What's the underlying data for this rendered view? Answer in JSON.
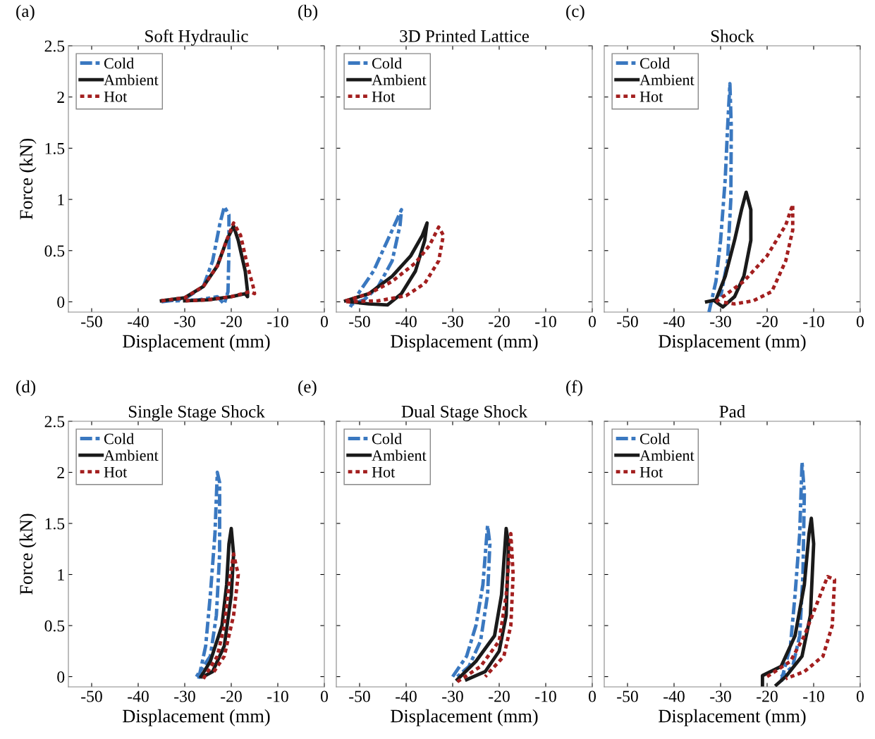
{
  "chart_data": [
    {
      "type": "line",
      "title": "Soft Hydraulic",
      "annotations": [
        "(a)"
      ],
      "xlabel": "Displacement (mm)",
      "ylabel": "Force (kN)",
      "xlim": [
        -55,
        0
      ],
      "ylim": [
        -0.1,
        2.5
      ],
      "xticks": [
        -50,
        -40,
        -30,
        -20,
        -10,
        0
      ],
      "yticks": [
        0,
        0.5,
        1,
        1.5,
        2,
        2.5
      ],
      "legend": "top left",
      "series": [
        {
          "name": "Cold",
          "color": "#3a78c0",
          "line_style": "dashed",
          "x": [
            -35,
            -30,
            -26,
            -24,
            -22.5,
            -21.5,
            -20.5,
            -20.5,
            -20.7,
            -21.5,
            -23,
            -27,
            -32
          ],
          "values": [
            0,
            0.03,
            0.15,
            0.4,
            0.75,
            0.93,
            0.85,
            0.5,
            0.1,
            -0.02,
            0.05,
            0.02,
            0.01
          ]
        },
        {
          "name": "Ambient",
          "color": "#1a1a1a",
          "line_style": "solid",
          "x": [
            -35,
            -30,
            -26,
            -23,
            -21,
            -19.5,
            -18.5,
            -17,
            -16.5,
            -16.5,
            -17,
            -20,
            -25,
            -30
          ],
          "values": [
            0.01,
            0.04,
            0.15,
            0.35,
            0.6,
            0.74,
            0.6,
            0.3,
            0.1,
            0.05,
            0.08,
            0.05,
            0.02,
            0.01
          ]
        },
        {
          "name": "Hot",
          "color": "#a31f1f",
          "line_style": "dotted",
          "x": [
            -35,
            -30,
            -26,
            -23,
            -21,
            -19.5,
            -18,
            -16.5,
            -15.3,
            -15,
            -16,
            -20,
            -25,
            -30
          ],
          "values": [
            0.01,
            0.04,
            0.15,
            0.35,
            0.6,
            0.77,
            0.65,
            0.35,
            0.15,
            0.08,
            0.1,
            0.05,
            0.02,
            0.01
          ]
        }
      ]
    },
    {
      "type": "line",
      "title": "3D Printed Lattice",
      "annotations": [
        "(b)"
      ],
      "xlabel": "Displacement (mm)",
      "xlim": [
        -55,
        0
      ],
      "ylim": [
        -0.1,
        2.5
      ],
      "xticks": [
        -50,
        -40,
        -30,
        -20,
        -10,
        0
      ],
      "yticks": [
        0,
        0.5,
        1,
        1.5,
        2,
        2.5
      ],
      "tick_labels": "x",
      "legend": "top left",
      "series": [
        {
          "name": "Cold",
          "color": "#3a78c0",
          "line_style": "dashed",
          "x": [
            -52,
            -50,
            -47,
            -44,
            -42,
            -41,
            -41.3,
            -43,
            -46,
            -49,
            -52
          ],
          "values": [
            -0.05,
            0.1,
            0.3,
            0.6,
            0.8,
            0.9,
            0.75,
            0.4,
            0.15,
            0.02,
            -0.03
          ]
        },
        {
          "name": "Ambient",
          "color": "#1a1a1a",
          "line_style": "solid",
          "x": [
            -53,
            -48,
            -43,
            -39,
            -36.5,
            -35.5,
            -36,
            -38,
            -41,
            -44,
            -48,
            -52
          ],
          "values": [
            0.01,
            0.08,
            0.25,
            0.45,
            0.65,
            0.77,
            0.6,
            0.3,
            0.08,
            -0.03,
            -0.02,
            0
          ]
        },
        {
          "name": "Hot",
          "color": "#a31f1f",
          "line_style": "dotted",
          "x": [
            -53,
            -48,
            -43,
            -38,
            -35,
            -33,
            -32,
            -33,
            -36,
            -40,
            -46,
            -53
          ],
          "values": [
            0.01,
            0.08,
            0.2,
            0.38,
            0.55,
            0.73,
            0.65,
            0.4,
            0.18,
            0.06,
            0.01,
            0
          ]
        }
      ]
    },
    {
      "type": "line",
      "title": "Shock",
      "annotations": [
        "(c)"
      ],
      "xlabel": "Displacement (mm)",
      "xlim": [
        -55,
        0
      ],
      "ylim": [
        -0.1,
        2.5
      ],
      "xticks": [
        -50,
        -40,
        -30,
        -20,
        -10,
        0
      ],
      "yticks": [
        0,
        0.5,
        1,
        1.5,
        2,
        2.5
      ],
      "tick_labels": "x",
      "legend": "top left",
      "series": [
        {
          "name": "Cold",
          "color": "#3a78c0",
          "line_style": "dashed",
          "x": [
            -32.5,
            -31,
            -30,
            -29,
            -28.5,
            -28,
            -27.7,
            -27.8,
            -28.5,
            -30
          ],
          "values": [
            -0.1,
            0.2,
            0.6,
            1.2,
            1.7,
            2.13,
            1.7,
            1.0,
            0.4,
            0.05
          ]
        },
        {
          "name": "Ambient",
          "color": "#1a1a1a",
          "line_style": "solid",
          "x": [
            -33,
            -31,
            -29,
            -27,
            -25.5,
            -24.5,
            -23.5,
            -23.5,
            -25,
            -27,
            -29.5,
            -31
          ],
          "values": [
            0,
            0.02,
            0.25,
            0.6,
            0.9,
            1.07,
            0.9,
            0.6,
            0.25,
            0.05,
            -0.05,
            0
          ]
        },
        {
          "name": "Hot",
          "color": "#a31f1f",
          "line_style": "dotted",
          "x": [
            -31,
            -28,
            -25,
            -20,
            -16,
            -14.5,
            -14.5,
            -16,
            -19,
            -23,
            -27,
            -30
          ],
          "values": [
            0,
            0.1,
            0.2,
            0.45,
            0.75,
            0.95,
            0.7,
            0.4,
            0.1,
            0.01,
            -0.02,
            0
          ]
        }
      ]
    },
    {
      "type": "line",
      "title": "Single Stage Shock",
      "annotations": [
        "(d)"
      ],
      "xlabel": "Displacement (mm)",
      "ylabel": "Force (kN)",
      "xlim": [
        -55,
        0
      ],
      "ylim": [
        -0.1,
        2.5
      ],
      "xticks": [
        -50,
        -40,
        -30,
        -20,
        -10,
        0
      ],
      "yticks": [
        0,
        0.5,
        1,
        1.5,
        2,
        2.5
      ],
      "legend": "top left",
      "series": [
        {
          "name": "Cold",
          "color": "#3a78c0",
          "line_style": "dashed",
          "x": [
            -27,
            -25.5,
            -24.5,
            -23.5,
            -23,
            -22.5,
            -22.5,
            -23.2,
            -24.5,
            -27.5
          ],
          "values": [
            -0.02,
            0.3,
            0.8,
            1.4,
            2.0,
            1.9,
            1.2,
            0.6,
            0.2,
            0
          ]
        },
        {
          "name": "Ambient",
          "color": "#1a1a1a",
          "line_style": "solid",
          "x": [
            -26.5,
            -24.5,
            -22,
            -21,
            -20.5,
            -20,
            -19.5,
            -20,
            -21.5,
            -24,
            -26
          ],
          "values": [
            0,
            0.15,
            0.5,
            0.9,
            1.3,
            1.45,
            1.2,
            0.8,
            0.3,
            0.05,
            0
          ]
        },
        {
          "name": "Hot",
          "color": "#a31f1f",
          "line_style": "dotted",
          "x": [
            -26,
            -23,
            -21.5,
            -20.5,
            -19.5,
            -18.5,
            -19.5,
            -21.5,
            -24
          ],
          "values": [
            -0.02,
            0.2,
            0.5,
            0.9,
            1.2,
            1.0,
            0.6,
            0.2,
            0.03
          ]
        }
      ]
    },
    {
      "type": "line",
      "title": "Dual Stage Shock",
      "annotations": [
        "(e)"
      ],
      "xlabel": "Displacement (mm)",
      "xlim": [
        -55,
        0
      ],
      "ylim": [
        -0.1,
        2.5
      ],
      "xticks": [
        -50,
        -40,
        -30,
        -20,
        -10,
        0
      ],
      "yticks": [
        0,
        0.5,
        1,
        1.5,
        2,
        2.5
      ],
      "tick_labels": "x",
      "legend": "top left",
      "series": [
        {
          "name": "Cold",
          "color": "#3a78c0",
          "line_style": "dashed",
          "x": [
            -30,
            -27,
            -25,
            -23.5,
            -22.5,
            -22,
            -22.5,
            -24,
            -26.5,
            -29
          ],
          "values": [
            0,
            0.2,
            0.5,
            0.9,
            1.48,
            1.3,
            0.8,
            0.35,
            0.1,
            0
          ]
        },
        {
          "name": "Ambient",
          "color": "#1a1a1a",
          "line_style": "solid",
          "x": [
            -29,
            -25,
            -21,
            -19.5,
            -18.5,
            -18,
            -18.5,
            -20,
            -23,
            -27
          ],
          "values": [
            -0.03,
            0.15,
            0.4,
            0.8,
            1.45,
            1.3,
            0.6,
            0.25,
            0.05,
            -0.03
          ]
        },
        {
          "name": "Hot",
          "color": "#a31f1f",
          "line_style": "dotted",
          "x": [
            -29,
            -24,
            -20,
            -18.5,
            -17.5,
            -17,
            -17.5,
            -19,
            -23
          ],
          "values": [
            -0.05,
            0.1,
            0.35,
            0.8,
            1.4,
            1.0,
            0.5,
            0.2,
            0
          ]
        }
      ]
    },
    {
      "type": "line",
      "title": "Pad",
      "annotations": [
        "(f)"
      ],
      "xlabel": "Displacement (mm)",
      "xlim": [
        -55,
        0
      ],
      "ylim": [
        -0.1,
        2.5
      ],
      "xticks": [
        -50,
        -40,
        -30,
        -20,
        -10,
        0
      ],
      "yticks": [
        0,
        0.5,
        1,
        1.5,
        2,
        2.5
      ],
      "tick_labels": "x",
      "legend": "top left",
      "series": [
        {
          "name": "Cold",
          "color": "#3a78c0",
          "line_style": "dashed",
          "x": [
            -17,
            -15,
            -14,
            -13,
            -12.5,
            -12,
            -12.3,
            -13,
            -14.5,
            -17
          ],
          "values": [
            -0.05,
            0.3,
            0.8,
            1.4,
            2.1,
            1.8,
            1.0,
            0.4,
            0.1,
            0
          ]
        },
        {
          "name": "Ambient",
          "color": "#1a1a1a",
          "line_style": "solid",
          "x": [
            -21,
            -21,
            -17,
            -14,
            -12,
            -11,
            -10.5,
            -10,
            -10.7,
            -12.5,
            -16,
            -18
          ],
          "values": [
            -0.08,
            0.01,
            0.1,
            0.4,
            0.9,
            1.4,
            1.55,
            1.3,
            0.6,
            0.2,
            0,
            -0.08
          ]
        },
        {
          "name": "Hot",
          "color": "#a31f1f",
          "line_style": "dotted",
          "x": [
            -20,
            -15,
            -12,
            -9,
            -7,
            -5.5,
            -6,
            -8,
            -12,
            -16
          ],
          "values": [
            0,
            0.15,
            0.4,
            0.75,
            0.98,
            0.95,
            0.5,
            0.2,
            0.05,
            -0.02
          ]
        }
      ]
    }
  ]
}
